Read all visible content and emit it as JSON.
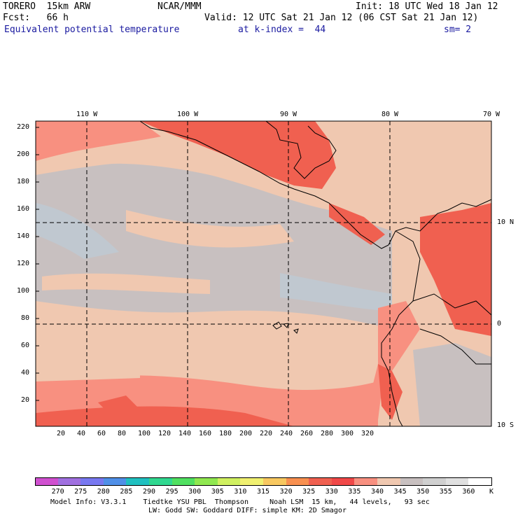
{
  "header": {
    "model": "TORERO  15km ARW",
    "center": "NCAR/MMM",
    "init": "Init: 18 UTC Wed 18 Jan 12",
    "fcst": "Fcst:   66 h",
    "valid": "Valid: 12 UTC Sat 21 Jan 12 (06 CST Sat 21 Jan 12)",
    "field": "Equivalent potential temperature",
    "level": "at k-index =  44",
    "smooth": "sm= 2"
  },
  "axes": {
    "top_labels": [
      "110 W",
      "100 W",
      "90 W",
      "80 W",
      "70 W"
    ],
    "right_labels": [
      "10 N",
      "0",
      "10 S"
    ],
    "left_ticks": [
      "220",
      "200",
      "180",
      "160",
      "140",
      "120",
      "100",
      "80",
      "60",
      "40",
      "20"
    ],
    "bottom_ticks": [
      "20",
      "40",
      "60",
      "80",
      "100",
      "120",
      "140",
      "160",
      "180",
      "200",
      "220",
      "240",
      "260",
      "280",
      "300",
      "320"
    ]
  },
  "colorbar": {
    "unit": "K",
    "labels": [
      "270",
      "275",
      "280",
      "285",
      "290",
      "295",
      "300",
      "305",
      "310",
      "315",
      "320",
      "325",
      "330",
      "335",
      "340",
      "345",
      "350",
      "355",
      "360"
    ],
    "colors": [
      "#d050d0",
      "#a070e0",
      "#7878f0",
      "#5090e8",
      "#20c0c0",
      "#30d890",
      "#50e060",
      "#90e850",
      "#d0f060",
      "#f0f070",
      "#f8c860",
      "#f89050",
      "#f06050",
      "#f04848",
      "#f89080",
      "#f0c8b0",
      "#c8c0c0",
      "#d0d0d0",
      "#e0e0e0",
      "#ffffff"
    ]
  },
  "footer": {
    "line1": "Model Info: V3.3.1    Tiedtke YSU PBL  Thompson     Noah LSM  15 km,   44 levels,   93 sec",
    "line2": "LW: Godd SW: Goddard DIFF: simple KM: 2D Smagor"
  }
}
